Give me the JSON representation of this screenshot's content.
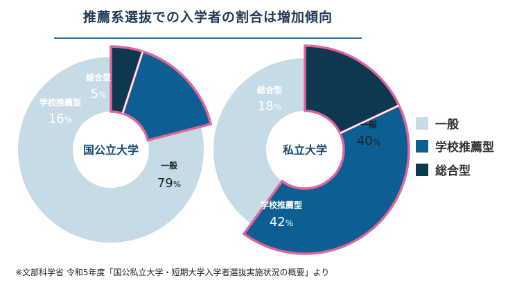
{
  "title": "推薦系選抜での入学者の割合は増加傾向",
  "colors": {
    "general": "#c6dbe6",
    "school_recommendation": "#0d5f93",
    "comprehensive": "#0c3850",
    "highlight_stroke": "#e0669a",
    "title_rule": "#2a6fa1"
  },
  "legend": [
    {
      "label": "一般",
      "color": "#c6dbe6"
    },
    {
      "label": "学校推薦型",
      "color": "#0d5f93"
    },
    {
      "label": "総合型",
      "color": "#0c3850"
    }
  ],
  "source": "※文部科学省 令和5年度「国公私立大学・短期大学入学者選抜実施状況の概要」より",
  "chart_data": [
    {
      "type": "pie",
      "center_label": "国公立大学",
      "unit": "%",
      "slices": [
        {
          "label": "総合型",
          "value": 5,
          "color": "#0c3850"
        },
        {
          "label": "学校推薦型",
          "value": 16,
          "color": "#0d5f93"
        },
        {
          "label": "一般",
          "value": 79,
          "color": "#c6dbe6"
        }
      ]
    },
    {
      "type": "pie",
      "center_label": "私立大学",
      "unit": "%",
      "slices": [
        {
          "label": "総合型",
          "value": 18,
          "color": "#0c3850"
        },
        {
          "label": "学校推薦型",
          "value": 42,
          "color": "#0d5f93"
        },
        {
          "label": "一般",
          "value": 40,
          "color": "#c6dbe6"
        }
      ]
    }
  ]
}
